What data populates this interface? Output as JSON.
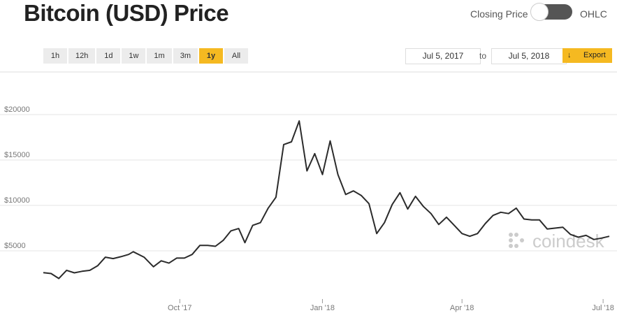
{
  "header": {
    "title": "Bitcoin (USD) Price"
  },
  "toggle": {
    "left": "Closing Price",
    "right": "OHLC"
  },
  "range_buttons": [
    "1h",
    "12h",
    "1d",
    "1w",
    "1m",
    "3m",
    "1y",
    "All"
  ],
  "date_range": {
    "from": "Jul 5, 2017",
    "separator": "to",
    "to": "Jul 5, 2018"
  },
  "export": "Export",
  "watermark": "coindesk",
  "chart_data": {
    "type": "line",
    "color": "#2b2b2b",
    "grid": true,
    "x": [
      "2017-07-05",
      "2017-07-10",
      "2017-07-15",
      "2017-07-20",
      "2017-07-25",
      "2017-07-30",
      "2017-08-04",
      "2017-08-09",
      "2017-08-14",
      "2017-08-19",
      "2017-08-24",
      "2017-08-29",
      "2017-09-01",
      "2017-09-08",
      "2017-09-14",
      "2017-09-19",
      "2017-09-24",
      "2017-09-29",
      "2017-10-04",
      "2017-10-09",
      "2017-10-14",
      "2017-10-19",
      "2017-10-24",
      "2017-10-29",
      "2017-11-03",
      "2017-11-08",
      "2017-11-12",
      "2017-11-17",
      "2017-11-22",
      "2017-11-27",
      "2017-12-02",
      "2017-12-07",
      "2017-12-12",
      "2017-12-17",
      "2017-12-22",
      "2017-12-27",
      "2018-01-01",
      "2018-01-06",
      "2018-01-11",
      "2018-01-16",
      "2018-01-21",
      "2018-01-26",
      "2018-01-31",
      "2018-02-05",
      "2018-02-10",
      "2018-02-15",
      "2018-02-20",
      "2018-02-25",
      "2018-03-02",
      "2018-03-07",
      "2018-03-12",
      "2018-03-17",
      "2018-03-22",
      "2018-03-27",
      "2018-04-01",
      "2018-04-06",
      "2018-04-11",
      "2018-04-16",
      "2018-04-21",
      "2018-04-26",
      "2018-05-01",
      "2018-05-06",
      "2018-05-11",
      "2018-05-16",
      "2018-05-21",
      "2018-05-26",
      "2018-05-31",
      "2018-06-05",
      "2018-06-10",
      "2018-06-15",
      "2018-06-20",
      "2018-06-25",
      "2018-06-30",
      "2018-07-05"
    ],
    "values": [
      2600,
      2500,
      1950,
      2850,
      2580,
      2750,
      2850,
      3350,
      4300,
      4150,
      4350,
      4600,
      4900,
      4300,
      3250,
      3900,
      3650,
      4200,
      4200,
      4600,
      5600,
      5600,
      5500,
      6150,
      7200,
      7450,
      5900,
      7800,
      8100,
      9700,
      10900,
      16700,
      17000,
      19300,
      13800,
      15700,
      13400,
      17100,
      13400,
      11200,
      11600,
      11100,
      10200,
      6900,
      8100,
      10100,
      11400,
      9600,
      11000,
      9900,
      9100,
      7900,
      8700,
      7800,
      6900,
      6600,
      6900,
      8000,
      8900,
      9250,
      9100,
      9700,
      8500,
      8400,
      8400,
      7400,
      7500,
      7600,
      6800,
      6500,
      6700,
      6250,
      6400,
      6600
    ],
    "xlim": [
      "2017-07-05",
      "2018-07-05"
    ],
    "xticks": [
      {
        "value": "2017-10-01",
        "label": "Oct '17"
      },
      {
        "value": "2018-01-01",
        "label": "Jan '18"
      },
      {
        "value": "2018-04-01",
        "label": "Apr '18"
      },
      {
        "value": "2018-07-01",
        "label": "Jul '18"
      }
    ],
    "ylim": [
      0,
      24000
    ],
    "yticks": [
      {
        "value": 5000,
        "label": "$5000"
      },
      {
        "value": 10000,
        "label": "$10000"
      },
      {
        "value": 15000,
        "label": "$15000"
      },
      {
        "value": 20000,
        "label": "$20000"
      }
    ]
  }
}
